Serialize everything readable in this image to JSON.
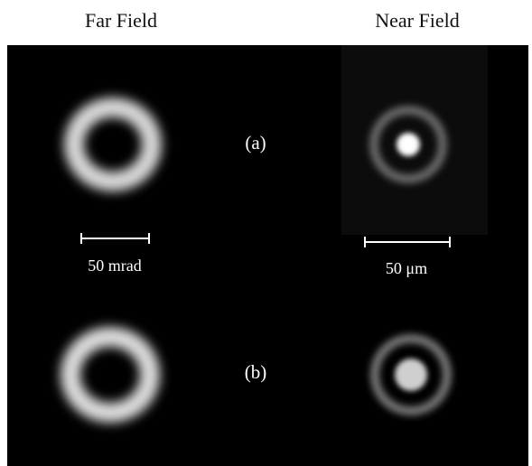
{
  "headers": {
    "far": "Far Field",
    "near": "Near Field"
  },
  "panels": [
    {
      "label": "(a)"
    },
    {
      "label": "(b)"
    }
  ],
  "scale_bars": {
    "far": "50 mrad",
    "near": "50 μm"
  }
}
